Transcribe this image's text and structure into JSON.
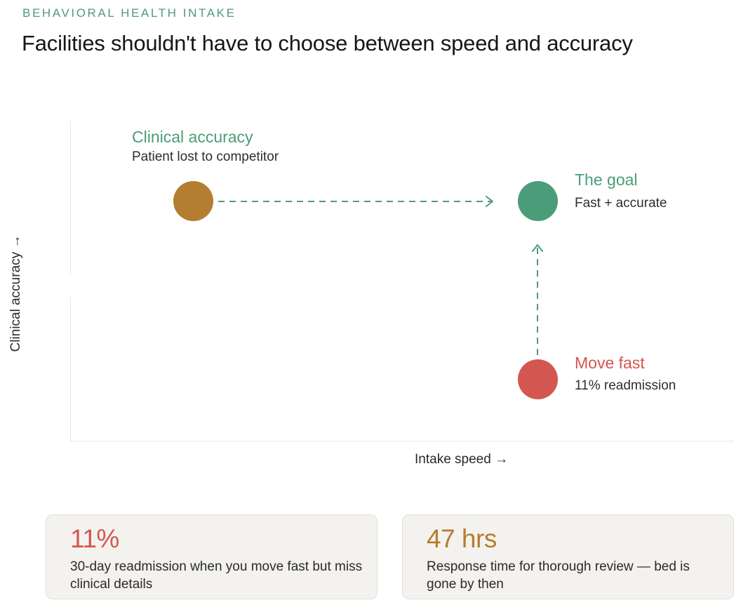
{
  "header": {
    "eyebrow": "BEHAVIORAL HEALTH INTAKE",
    "title": "Facilities shouldn't have to choose between speed and accuracy"
  },
  "axes": {
    "y_label": "Clinical accuracy →",
    "x_label": "Intake speed →"
  },
  "nodes": {
    "accuracy": {
      "title": "Clinical accuracy",
      "subtitle": "Patient lost to competitor",
      "color": "#b47d30"
    },
    "goal": {
      "title": "The goal",
      "subtitle": "Fast + accurate",
      "color": "#4a9d78"
    },
    "fast": {
      "title": "Move fast",
      "subtitle": "11% readmission",
      "color": "#d45650"
    }
  },
  "colors": {
    "eyebrow": "#4f9a78",
    "arrow": "#4a9d78",
    "accuracy_title": "#4a9d78",
    "goal_title": "#4a9d78",
    "fast_title": "#d45650",
    "card_red": "#d45650",
    "card_gold": "#b47d30"
  },
  "cards": [
    {
      "value": "11%",
      "text": "30-day readmission when you move fast but miss clinical details"
    },
    {
      "value": "47 hrs",
      "text": "Response time for thorough review — bed is gone by then"
    }
  ]
}
